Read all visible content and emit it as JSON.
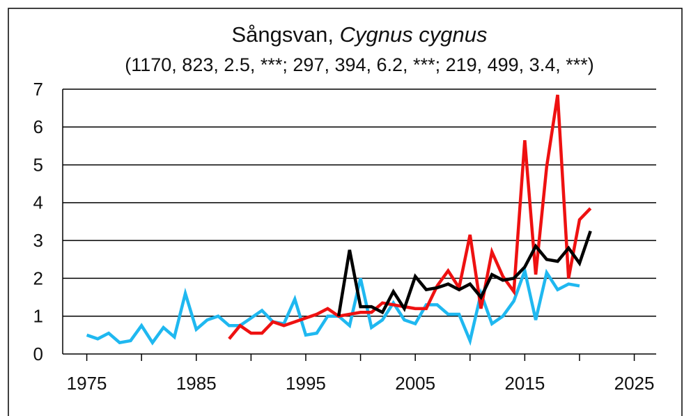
{
  "chart_data": {
    "type": "line",
    "title": {
      "common": "Sångsvan,",
      "latin": "Cygnus cygnus"
    },
    "subtitle": "(1170, 823, 2.5, ***; 297, 394, 6.2, ***; 219, 499, 3.4, ***)",
    "x": [
      1975,
      1976,
      1977,
      1978,
      1979,
      1980,
      1981,
      1982,
      1983,
      1984,
      1985,
      1986,
      1987,
      1988,
      1989,
      1990,
      1991,
      1992,
      1993,
      1994,
      1995,
      1996,
      1997,
      1998,
      1999,
      2000,
      2001,
      2002,
      2003,
      2004,
      2005,
      2006,
      2007,
      2008,
      2009,
      2010,
      2011,
      2012,
      2013,
      2014,
      2015,
      2016,
      2017,
      2018,
      2019,
      2020,
      2021
    ],
    "series": [
      {
        "color": "#1fb8f0",
        "values": [
          0.5,
          0.4,
          0.55,
          0.3,
          0.35,
          0.75,
          0.3,
          0.7,
          0.45,
          1.6,
          0.65,
          0.9,
          1.0,
          0.75,
          0.75,
          0.95,
          1.15,
          0.85,
          0.8,
          1.45,
          0.5,
          0.55,
          1.0,
          1.0,
          0.75,
          2.0,
          0.7,
          0.9,
          1.35,
          0.9,
          0.8,
          1.3,
          1.3,
          1.05,
          1.05,
          0.35,
          1.6,
          0.8,
          1.0,
          1.4,
          2.2,
          0.9,
          2.15,
          1.7,
          1.85,
          1.8,
          null
        ]
      },
      {
        "color": "#ee1111",
        "values": [
          null,
          null,
          null,
          null,
          null,
          null,
          null,
          null,
          null,
          null,
          null,
          null,
          null,
          0.4,
          0.75,
          0.55,
          0.55,
          0.85,
          0.75,
          0.85,
          0.95,
          1.05,
          1.2,
          1.0,
          1.05,
          1.1,
          1.1,
          1.35,
          1.3,
          1.25,
          1.2,
          1.2,
          1.8,
          2.2,
          1.75,
          3.15,
          1.2,
          2.7,
          2.05,
          1.65,
          5.65,
          2.1,
          4.95,
          6.85,
          2.0,
          3.55,
          3.85
        ]
      },
      {
        "color": "#000000",
        "values": [
          null,
          null,
          null,
          null,
          null,
          null,
          null,
          null,
          null,
          null,
          null,
          null,
          null,
          null,
          null,
          null,
          null,
          null,
          null,
          null,
          null,
          null,
          null,
          1.0,
          2.75,
          1.25,
          1.25,
          1.1,
          1.65,
          1.2,
          2.05,
          1.7,
          1.75,
          1.85,
          1.7,
          1.85,
          1.5,
          2.1,
          1.95,
          2.0,
          2.3,
          2.85,
          2.5,
          2.45,
          2.8,
          2.4,
          3.25
        ]
      }
    ],
    "xlim": [
      1972.8,
      2027
    ],
    "xticks": [
      1975,
      1985,
      1995,
      2005,
      2015,
      2025
    ],
    "xminor_ticks": [
      1980,
      1990,
      2000,
      2010,
      2020
    ],
    "ylim": [
      0,
      7
    ],
    "yticks": [
      0,
      1,
      2,
      3,
      4,
      5,
      6,
      7
    ],
    "grid": true
  }
}
